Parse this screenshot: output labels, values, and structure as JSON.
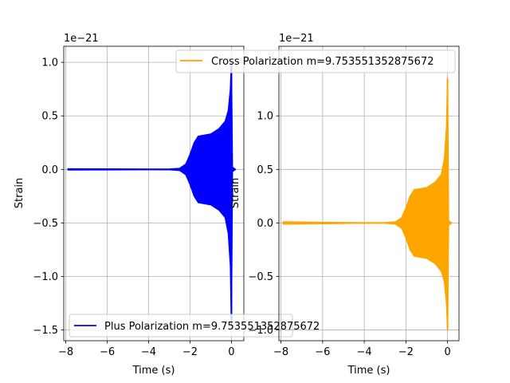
{
  "chart_data": [
    {
      "type": "line",
      "xlabel": "Time (s)",
      "ylabel": "Strain",
      "offset_text": "1e−21",
      "xlim": [
        -8.1,
        0.6
      ],
      "ylim": [
        -1.6,
        1.15
      ],
      "xticks": [
        -8,
        -6,
        -4,
        -2,
        0
      ],
      "xtick_labels": [
        "−8",
        "−6",
        "−4",
        "−2",
        "0"
      ],
      "yticks": [
        -1.5,
        -1.0,
        -0.5,
        0.0,
        0.5,
        1.0
      ],
      "ytick_labels": [
        "−1.5",
        "−1.0",
        "−0.5",
        "0.0",
        "0.5",
        "1.0"
      ],
      "grid": true,
      "legend_position": "lower-left",
      "series": [
        {
          "name": "Plus Polarization m=9.753551352875672",
          "color": "#0000ff",
          "envelope_points": [
            {
              "t": -7.9,
              "upper": 0.005,
              "lower": -0.005
            },
            {
              "t": -6.0,
              "upper": 0.004,
              "lower": -0.004
            },
            {
              "t": -4.0,
              "upper": 0.002,
              "lower": -0.002
            },
            {
              "t": -3.0,
              "upper": 0.003,
              "lower": -0.003
            },
            {
              "t": -2.5,
              "upper": 0.01,
              "lower": -0.01
            },
            {
              "t": -2.2,
              "upper": 0.05,
              "lower": -0.05
            },
            {
              "t": -2.0,
              "upper": 0.14,
              "lower": -0.14
            },
            {
              "t": -1.8,
              "upper": 0.25,
              "lower": -0.25
            },
            {
              "t": -1.6,
              "upper": 0.31,
              "lower": -0.31
            },
            {
              "t": -1.3,
              "upper": 0.32,
              "lower": -0.32
            },
            {
              "t": -1.0,
              "upper": 0.33,
              "lower": -0.33
            },
            {
              "t": -0.6,
              "upper": 0.38,
              "lower": -0.38
            },
            {
              "t": -0.3,
              "upper": 0.45,
              "lower": -0.45
            },
            {
              "t": -0.15,
              "upper": 0.55,
              "lower": -0.6
            },
            {
              "t": -0.05,
              "upper": 0.75,
              "lower": -0.9
            },
            {
              "t": 0.0,
              "upper": 1.0,
              "lower": -1.45
            },
            {
              "t": 0.05,
              "upper": 0.02,
              "lower": -0.02
            },
            {
              "t": 0.2,
              "upper": 0.0,
              "lower": 0.0
            }
          ]
        }
      ]
    },
    {
      "type": "line",
      "xlabel": "Time (s)",
      "ylabel": "Strain",
      "offset_text": "1e−21",
      "xlim": [
        -8.1,
        0.55
      ],
      "ylim": [
        -1.1,
        1.65
      ],
      "xticks": [
        -8,
        -6,
        -4,
        -2,
        0
      ],
      "xtick_labels": [
        "−8",
        "−6",
        "−4",
        "−2",
        "0"
      ],
      "yticks": [
        -1.0,
        -0.5,
        0.0,
        0.5,
        1.0
      ],
      "ytick_labels": [
        "−1.0",
        "−0.5",
        "0.0",
        "0.5",
        "1.0"
      ],
      "grid": true,
      "legend_position": "top-right",
      "series": [
        {
          "name": "Cross Polarization m=9.753551352875672",
          "color": "#ffa500",
          "envelope_points": [
            {
              "t": -7.9,
              "upper": 0.01,
              "lower": -0.01
            },
            {
              "t": -6.0,
              "upper": 0.006,
              "lower": -0.006
            },
            {
              "t": -4.0,
              "upper": 0.002,
              "lower": -0.002
            },
            {
              "t": -3.0,
              "upper": 0.003,
              "lower": -0.003
            },
            {
              "t": -2.5,
              "upper": 0.01,
              "lower": -0.01
            },
            {
              "t": -2.2,
              "upper": 0.05,
              "lower": -0.05
            },
            {
              "t": -2.0,
              "upper": 0.14,
              "lower": -0.14
            },
            {
              "t": -1.8,
              "upper": 0.25,
              "lower": -0.25
            },
            {
              "t": -1.6,
              "upper": 0.31,
              "lower": -0.31
            },
            {
              "t": -1.3,
              "upper": 0.32,
              "lower": -0.32
            },
            {
              "t": -1.0,
              "upper": 0.33,
              "lower": -0.33
            },
            {
              "t": -0.6,
              "upper": 0.38,
              "lower": -0.38
            },
            {
              "t": -0.3,
              "upper": 0.45,
              "lower": -0.45
            },
            {
              "t": -0.15,
              "upper": 0.6,
              "lower": -0.55
            },
            {
              "t": -0.05,
              "upper": 0.9,
              "lower": -0.75
            },
            {
              "t": 0.0,
              "upper": 1.35,
              "lower": -1.0
            },
            {
              "t": 0.05,
              "upper": 0.02,
              "lower": -0.02
            },
            {
              "t": 0.2,
              "upper": 0.0,
              "lower": 0.0
            }
          ]
        }
      ]
    }
  ]
}
